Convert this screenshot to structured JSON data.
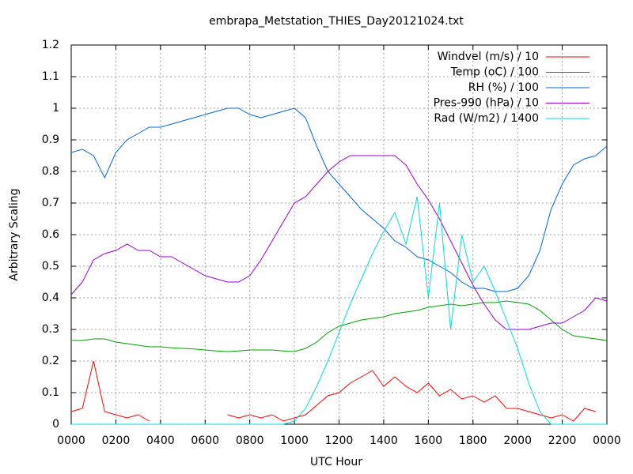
{
  "chart_data": {
    "type": "line",
    "title": "embrapa_Metstation_THIES_Day20121024.txt",
    "x_label": "UTC Hour",
    "y_label": "Arbitrary Scaling",
    "x": [
      0,
      0.5,
      1,
      1.5,
      2,
      2.5,
      3,
      3.5,
      4,
      4.5,
      5,
      5.5,
      6,
      6.5,
      7,
      7.5,
      8,
      8.5,
      9,
      9.5,
      10,
      10.5,
      11,
      11.5,
      12,
      12.5,
      13,
      13.5,
      14,
      14.5,
      15,
      15.5,
      16,
      16.5,
      17,
      17.5,
      18,
      18.5,
      19,
      19.5,
      20,
      20.5,
      21,
      21.5,
      22,
      22.5,
      23,
      23.5,
      24
    ],
    "xlim": [
      0,
      24
    ],
    "xticks": [
      {
        "value": 0,
        "label": "0000"
      },
      {
        "value": 2,
        "label": "0200"
      },
      {
        "value": 4,
        "label": "0400"
      },
      {
        "value": 6,
        "label": "0600"
      },
      {
        "value": 8,
        "label": "0800"
      },
      {
        "value": 10,
        "label": "1000"
      },
      {
        "value": 12,
        "label": "1200"
      },
      {
        "value": 14,
        "label": "1400"
      },
      {
        "value": 16,
        "label": "1600"
      },
      {
        "value": 18,
        "label": "1800"
      },
      {
        "value": 20,
        "label": "2000"
      },
      {
        "value": 22,
        "label": "2200"
      },
      {
        "value": 24,
        "label": "0000"
      }
    ],
    "ylim": [
      0,
      1.2
    ],
    "yticks": [
      0,
      0.1,
      0.2,
      0.3,
      0.4,
      0.5,
      0.6,
      0.7,
      0.8,
      0.9,
      1,
      1.1,
      1.2
    ],
    "grid": true,
    "legend": "top-right",
    "series": [
      {
        "name": "Windvel (m/s) / 10",
        "color": "#ff0000",
        "values": [
          0.04,
          0.05,
          0.2,
          0.04,
          0.03,
          0.02,
          0.03,
          0.01,
          null,
          null,
          null,
          null,
          null,
          null,
          0.03,
          0.02,
          0.03,
          0.02,
          0.03,
          0.01,
          0.02,
          0.03,
          0.06,
          0.09,
          0.1,
          0.13,
          0.15,
          0.17,
          0.12,
          0.15,
          0.12,
          0.1,
          0.13,
          0.09,
          0.11,
          0.08,
          0.09,
          0.07,
          0.09,
          0.05,
          0.05,
          0.04,
          0.03,
          0.02,
          0.03,
          0.01,
          0.05,
          0.04,
          null
        ]
      },
      {
        "name": "Temp (oC) / 100",
        "color": "#00a000",
        "values": [
          0.265,
          0.265,
          0.27,
          0.27,
          0.26,
          0.255,
          0.25,
          0.245,
          0.245,
          0.242,
          0.24,
          0.238,
          0.235,
          0.232,
          0.23,
          0.232,
          0.235,
          0.235,
          0.235,
          0.232,
          0.23,
          0.24,
          0.26,
          0.29,
          0.31,
          0.32,
          0.33,
          0.335,
          0.34,
          0.35,
          0.355,
          0.36,
          0.37,
          0.375,
          0.38,
          0.375,
          0.38,
          0.385,
          0.385,
          0.39,
          0.385,
          0.38,
          0.36,
          0.33,
          0.3,
          0.28,
          0.275,
          0.27,
          0.265
        ]
      },
      {
        "name": "RH (%) / 100",
        "color": "#0066dd",
        "values": [
          0.86,
          0.87,
          0.85,
          0.78,
          0.86,
          0.9,
          0.92,
          0.94,
          0.94,
          0.95,
          0.96,
          0.97,
          0.98,
          0.99,
          1.0,
          1.0,
          0.98,
          0.97,
          0.98,
          0.99,
          1.0,
          0.97,
          0.88,
          0.8,
          0.76,
          0.72,
          0.68,
          0.65,
          0.62,
          0.58,
          0.56,
          0.53,
          0.52,
          0.5,
          0.48,
          0.45,
          0.43,
          0.43,
          0.42,
          0.42,
          0.43,
          0.47,
          0.55,
          0.68,
          0.76,
          0.82,
          0.84,
          0.85,
          0.88
        ]
      },
      {
        "name": "Pres-990 (hPa) / 10",
        "color": "#9900cc",
        "values": [
          0.41,
          0.45,
          0.52,
          0.54,
          0.55,
          0.57,
          0.55,
          0.55,
          0.53,
          0.53,
          0.51,
          0.49,
          0.47,
          0.46,
          0.45,
          0.45,
          0.47,
          0.52,
          0.58,
          0.64,
          0.7,
          0.72,
          0.76,
          0.8,
          0.83,
          0.85,
          0.85,
          0.85,
          0.85,
          0.85,
          0.82,
          0.76,
          0.71,
          0.65,
          0.58,
          0.51,
          0.44,
          0.38,
          0.33,
          0.3,
          0.3,
          0.3,
          0.31,
          0.32,
          0.32,
          0.34,
          0.36,
          0.4,
          0.39
        ]
      },
      {
        "name": "Rad (W/m2) / 1400",
        "color": "#00dddd",
        "values": [
          0,
          0,
          0,
          0,
          0,
          0,
          0,
          0,
          0,
          0,
          0,
          0,
          0,
          0,
          0,
          0,
          0,
          0,
          0,
          0,
          0.01,
          0.05,
          0.12,
          0.2,
          0.29,
          0.38,
          0.46,
          0.54,
          0.61,
          0.67,
          0.57,
          0.72,
          0.4,
          0.7,
          0.3,
          0.6,
          0.45,
          0.5,
          0.42,
          0.33,
          0.24,
          0.13,
          0.04,
          0,
          0,
          0,
          0,
          0,
          0
        ]
      }
    ]
  }
}
